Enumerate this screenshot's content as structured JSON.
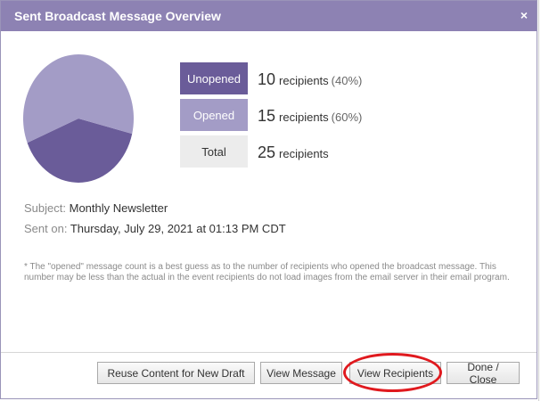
{
  "dialog": {
    "title": "Sent Broadcast Message Overview",
    "close_symbol": "×"
  },
  "chart_data": {
    "type": "pie",
    "categories": [
      "Unopened",
      "Opened"
    ],
    "values": [
      10,
      15
    ],
    "colors": [
      "#6a5c99",
      "#a39cc6"
    ]
  },
  "stats": {
    "unopened": {
      "label": "Unopened",
      "count": "10",
      "unit": "recipients",
      "pct": "(40%)"
    },
    "opened": {
      "label": "Opened",
      "count": "15",
      "unit": "recipients",
      "pct": "(60%)"
    },
    "total": {
      "label": "Total",
      "count": "25",
      "unit": "recipients"
    }
  },
  "meta": {
    "subject_label": "Subject:",
    "subject_value": "Monthly Newsletter",
    "sent_label": "Sent on:",
    "sent_value": "Thursday, July 29, 2021 at 01:13 PM CDT"
  },
  "note": "* The \"opened\" message count is a best guess as to the number of recipients who opened the broadcast message. This number may be less than the actual in the event recipients do not load images from the email server in their email program.",
  "buttons": {
    "reuse": "Reuse Content for New Draft",
    "view_message": "View Message",
    "view_recipients": "View Recipients",
    "done": "Done / Close"
  },
  "colors": {
    "titlebar": "#8d82b3",
    "unopened": "#6a5c99",
    "opened": "#a39cc6",
    "highlight": "#e0191e"
  }
}
